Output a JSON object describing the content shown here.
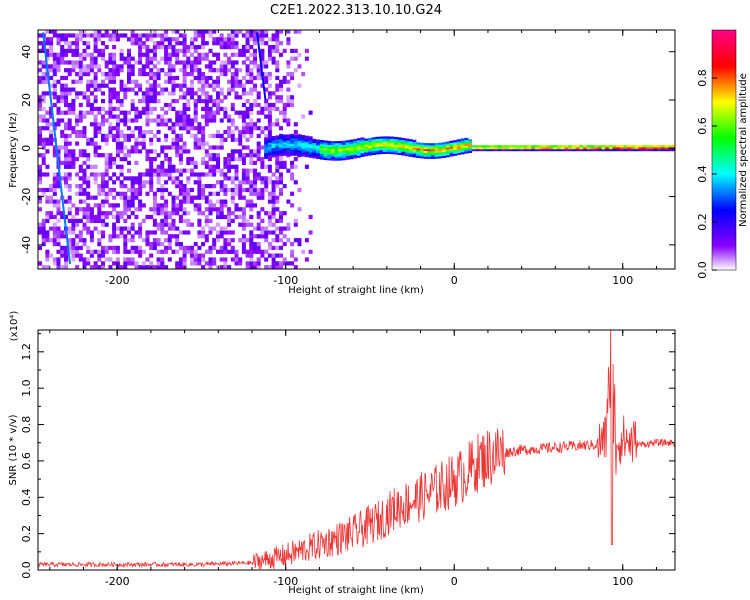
{
  "title": "C2E1.2022.313.10.10.G24",
  "chart_data": [
    {
      "type": "heatmap",
      "xlabel": "Height of straight line (km)",
      "ylabel": "Frequency (Hz)",
      "xlim": [
        -247,
        131
      ],
      "ylim": [
        -50,
        49
      ],
      "x_ticks": [
        -200,
        -100,
        0,
        100
      ],
      "x_tick_labels": [
        "-200",
        "-100",
        "0",
        "100"
      ],
      "y_ticks": [
        -40,
        -20,
        0,
        20,
        40
      ],
      "y_tick_labels": [
        "-40",
        "-20",
        "0",
        "20",
        "40"
      ],
      "colorbar": {
        "label": "Normalized spectral amplitude",
        "range": [
          0,
          1
        ],
        "ticks": [
          0.0,
          0.2,
          0.4,
          0.6,
          0.8
        ],
        "tick_labels": [
          "0.0",
          "0.2",
          "0.4",
          "0.6",
          "0.8"
        ],
        "colors": [
          "#ffffff",
          "#8800ff",
          "#0000ff",
          "#00ffff",
          "#00ff00",
          "#ffff00",
          "#ff0000",
          "#ff0088"
        ]
      },
      "features": {
        "noise_region_x": [
          -247,
          -92
        ],
        "carrier_line_x": [
          -115,
          131
        ],
        "carrier_frequency_hz": 0
      }
    },
    {
      "type": "line",
      "xlabel": "Height of straight line (km)",
      "ylabel": "SNR (10 * v/v)",
      "scale_label": "(x10⁴)",
      "xlim": [
        -247,
        131
      ],
      "ylim": [
        0,
        1.32
      ],
      "x_ticks": [
        -200,
        -100,
        0,
        100
      ],
      "x_tick_labels": [
        "-200",
        "-100",
        "0",
        "100"
      ],
      "y_ticks": [
        0.0,
        0.2,
        0.4,
        0.6,
        0.8,
        1.0,
        1.2
      ],
      "y_tick_labels": [
        "0.0",
        "0.2",
        "0.4",
        "0.6",
        "0.8",
        "1.0",
        "1.2"
      ],
      "line_color": "#ee3333",
      "series": [
        {
          "x": [
            -247,
            -200,
            -150,
            -120,
            -100,
            -80,
            -60,
            -45,
            -35,
            -25,
            -15,
            -5,
            5,
            15,
            25,
            40,
            55,
            70,
            85,
            90,
            93,
            95,
            100,
            110,
            120,
            131
          ],
          "y": [
            0.03,
            0.03,
            0.03,
            0.04,
            0.08,
            0.14,
            0.2,
            0.27,
            0.34,
            0.38,
            0.42,
            0.47,
            0.52,
            0.6,
            0.64,
            0.66,
            0.67,
            0.68,
            0.69,
            0.72,
            1.32,
            0.7,
            0.72,
            0.69,
            0.7,
            0.7
          ]
        }
      ]
    }
  ]
}
